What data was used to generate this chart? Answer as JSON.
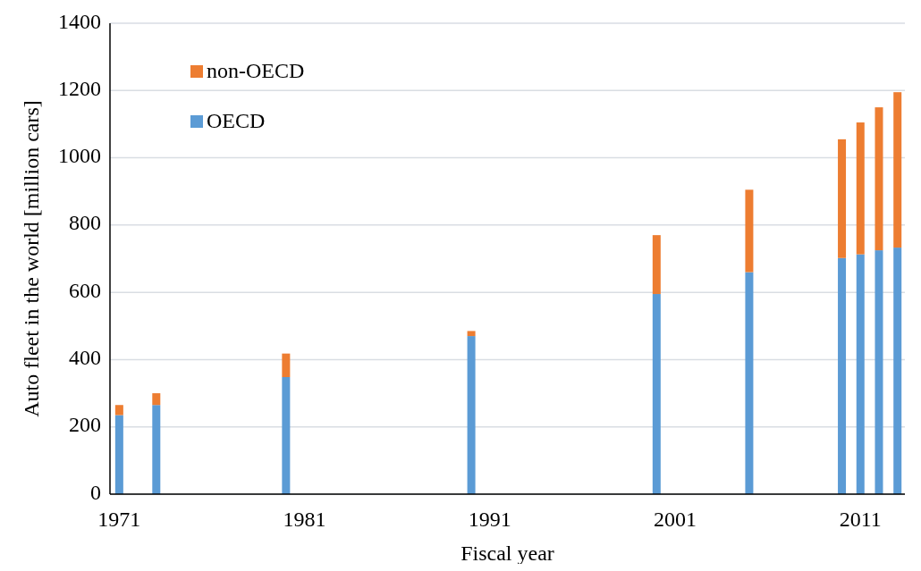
{
  "chart_data": {
    "type": "bar",
    "stacked": true,
    "xlabel": "Fiscal year",
    "ylabel": "Auto fleet in the world [million cars]",
    "x": [
      1971,
      1973,
      1980,
      1990,
      2000,
      2005,
      2010,
      2011,
      2012,
      2013
    ],
    "series": [
      {
        "name": "OECD",
        "color": "#5b9bd5",
        "values": [
          235,
          265,
          348,
          470,
          595,
          660,
          702,
          713,
          725,
          733
        ]
      },
      {
        "name": "non-OECD",
        "color": "#ed7d31",
        "values": [
          30,
          35,
          70,
          15,
          175,
          245,
          353,
          392,
          425,
          462
        ]
      }
    ],
    "xlim": [
      1970.5,
      2013.4
    ],
    "xticks": [
      1971,
      1981,
      1991,
      2001,
      2011
    ],
    "ylim": [
      0,
      1400
    ],
    "yticks": [
      0,
      200,
      400,
      600,
      800,
      1000,
      1200,
      1400
    ],
    "grid": "y",
    "legend": "top left"
  }
}
